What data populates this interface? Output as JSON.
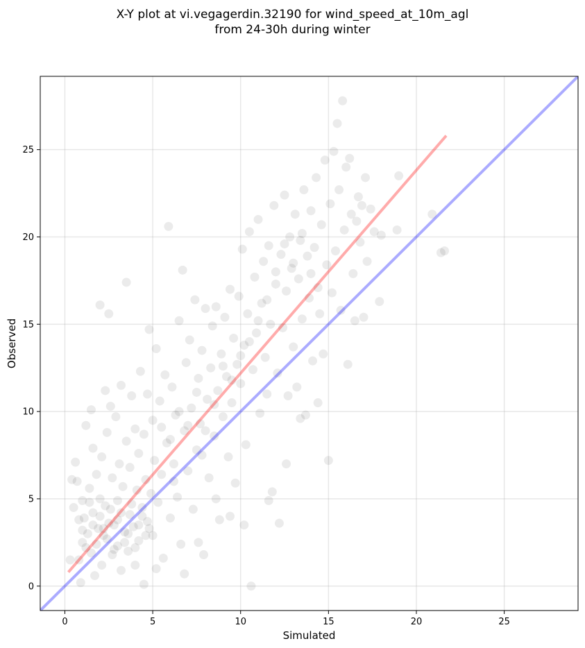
{
  "chart_data": {
    "type": "scatter",
    "title_line1": "X-Y plot at vi.vegagerdin.32190 for wind_speed_at_10m_agl",
    "title_line2": "from 24-30h during winter",
    "xlabel": "Simulated",
    "ylabel": "Observed",
    "xlim": [
      -1.4,
      29.2
    ],
    "ylim": [
      -1.4,
      29.2
    ],
    "x_ticks": [
      0,
      5,
      10,
      15,
      20,
      25
    ],
    "y_ticks": [
      0,
      5,
      10,
      15,
      20,
      25
    ],
    "grid": true,
    "point_color": "#000000",
    "point_alpha": 0.08,
    "identity_line": {
      "color": "#0000ff",
      "points": [
        [
          -1.4,
          -1.4
        ],
        [
          29.2,
          29.2
        ]
      ]
    },
    "fit_line": {
      "color": "#ff0000",
      "points": [
        [
          0.2,
          0.8
        ],
        [
          21.7,
          25.8
        ]
      ]
    },
    "series": [
      {
        "values": [
          [
            0.3,
            1.5
          ],
          [
            0.4,
            6.1
          ],
          [
            0.5,
            4.5
          ],
          [
            0.6,
            7.1
          ],
          [
            0.7,
            6.0
          ],
          [
            0.8,
            1.5
          ],
          [
            0.8,
            3.8
          ],
          [
            0.9,
            0.2
          ],
          [
            1.0,
            4.9
          ],
          [
            1.0,
            2.5
          ],
          [
            1.1,
            3.9
          ],
          [
            1.2,
            9.2
          ],
          [
            1.3,
            3.0
          ],
          [
            1.4,
            5.6
          ],
          [
            1.5,
            10.1
          ],
          [
            1.5,
            1.9
          ],
          [
            1.6,
            7.9
          ],
          [
            1.6,
            4.2
          ],
          [
            1.7,
            0.6
          ],
          [
            1.8,
            6.4
          ],
          [
            1.9,
            3.3
          ],
          [
            2.0,
            16.1
          ],
          [
            2.0,
            5.0
          ],
          [
            2.1,
            1.2
          ],
          [
            2.1,
            7.4
          ],
          [
            2.2,
            2.9
          ],
          [
            2.3,
            11.2
          ],
          [
            2.3,
            4.6
          ],
          [
            2.4,
            8.8
          ],
          [
            2.5,
            15.6
          ],
          [
            2.5,
            3.6
          ],
          [
            2.6,
            10.3
          ],
          [
            2.7,
            6.2
          ],
          [
            2.7,
            1.8
          ],
          [
            2.8,
            3.5
          ],
          [
            2.9,
            9.7
          ],
          [
            3.0,
            4.9
          ],
          [
            3.0,
            2.3
          ],
          [
            3.1,
            7.0
          ],
          [
            3.2,
            0.9
          ],
          [
            3.2,
            11.5
          ],
          [
            3.3,
            5.7
          ],
          [
            3.4,
            3.1
          ],
          [
            3.5,
            17.4
          ],
          [
            3.5,
            8.3
          ],
          [
            3.6,
            2.0
          ],
          [
            3.7,
            6.8
          ],
          [
            3.7,
            4.1
          ],
          [
            3.8,
            10.9
          ],
          [
            3.9,
            3.4
          ],
          [
            4.0,
            9.0
          ],
          [
            4.0,
            1.2
          ],
          [
            4.1,
            5.5
          ],
          [
            4.2,
            7.6
          ],
          [
            4.2,
            2.6
          ],
          [
            4.3,
            12.3
          ],
          [
            4.4,
            4.5
          ],
          [
            4.5,
            8.7
          ],
          [
            4.5,
            0.1
          ],
          [
            4.6,
            6.1
          ],
          [
            4.7,
            3.7
          ],
          [
            4.7,
            11.0
          ],
          [
            4.8,
            14.7
          ],
          [
            4.9,
            5.3
          ],
          [
            5.0,
            9.5
          ],
          [
            5.0,
            2.9
          ],
          [
            5.1,
            7.2
          ],
          [
            5.2,
            13.6
          ],
          [
            5.3,
            4.8
          ],
          [
            5.4,
            10.6
          ],
          [
            5.5,
            6.4
          ],
          [
            5.6,
            1.6
          ],
          [
            5.7,
            12.1
          ],
          [
            5.8,
            8.2
          ],
          [
            5.9,
            20.6
          ],
          [
            6.0,
            3.9
          ],
          [
            6.1,
            11.4
          ],
          [
            6.2,
            7.0
          ],
          [
            6.3,
            9.8
          ],
          [
            6.4,
            5.1
          ],
          [
            6.5,
            15.2
          ],
          [
            6.6,
            2.4
          ],
          [
            6.7,
            18.1
          ],
          [
            6.8,
            8.9
          ],
          [
            6.9,
            12.8
          ],
          [
            7.0,
            6.6
          ],
          [
            7.1,
            14.1
          ],
          [
            7.2,
            10.2
          ],
          [
            7.3,
            4.4
          ],
          [
            7.4,
            16.4
          ],
          [
            7.5,
            7.8
          ],
          [
            7.6,
            11.9
          ],
          [
            7.7,
            9.3
          ],
          [
            7.8,
            13.5
          ],
          [
            7.9,
            1.8
          ],
          [
            8.0,
            15.9
          ],
          [
            8.1,
            10.7
          ],
          [
            8.2,
            6.2
          ],
          [
            8.3,
            12.5
          ],
          [
            8.4,
            14.9
          ],
          [
            8.5,
            8.6
          ],
          [
            8.6,
            16.0
          ],
          [
            8.7,
            11.2
          ],
          [
            8.8,
            3.8
          ],
          [
            8.9,
            13.3
          ],
          [
            9.0,
            9.7
          ],
          [
            9.1,
            15.4
          ],
          [
            9.2,
            12.0
          ],
          [
            9.3,
            7.4
          ],
          [
            9.4,
            17.0
          ],
          [
            9.5,
            10.5
          ],
          [
            9.6,
            14.2
          ],
          [
            9.7,
            5.9
          ],
          [
            9.8,
            12.7
          ],
          [
            9.9,
            16.6
          ],
          [
            10.0,
            11.6
          ],
          [
            10.1,
            19.3
          ],
          [
            10.2,
            13.8
          ],
          [
            10.3,
            8.1
          ],
          [
            10.4,
            15.6
          ],
          [
            10.5,
            20.3
          ],
          [
            10.6,
            0.0
          ],
          [
            10.7,
            12.4
          ],
          [
            10.8,
            17.7
          ],
          [
            10.9,
            14.5
          ],
          [
            11.0,
            21.0
          ],
          [
            11.1,
            9.9
          ],
          [
            11.2,
            16.2
          ],
          [
            11.3,
            18.6
          ],
          [
            11.4,
            13.1
          ],
          [
            11.5,
            11.0
          ],
          [
            11.6,
            19.5
          ],
          [
            11.7,
            15.0
          ],
          [
            11.8,
            5.4
          ],
          [
            11.9,
            21.8
          ],
          [
            12.0,
            17.3
          ],
          [
            12.1,
            12.2
          ],
          [
            12.2,
            3.6
          ],
          [
            12.3,
            19.0
          ],
          [
            12.4,
            14.8
          ],
          [
            12.5,
            22.4
          ],
          [
            12.6,
            16.9
          ],
          [
            12.7,
            10.9
          ],
          [
            12.8,
            20.0
          ],
          [
            12.9,
            18.2
          ],
          [
            13.0,
            13.7
          ],
          [
            13.1,
            21.3
          ],
          [
            13.2,
            11.4
          ],
          [
            13.3,
            17.6
          ],
          [
            13.4,
            19.8
          ],
          [
            13.5,
            15.3
          ],
          [
            13.6,
            22.7
          ],
          [
            13.7,
            9.8
          ],
          [
            13.8,
            18.9
          ],
          [
            13.9,
            16.5
          ],
          [
            14.0,
            21.5
          ],
          [
            14.1,
            12.9
          ],
          [
            14.2,
            19.4
          ],
          [
            14.3,
            23.4
          ],
          [
            14.4,
            17.1
          ],
          [
            14.5,
            15.6
          ],
          [
            14.6,
            20.7
          ],
          [
            14.7,
            13.3
          ],
          [
            14.8,
            24.4
          ],
          [
            14.9,
            18.4
          ],
          [
            15.0,
            7.2
          ],
          [
            15.1,
            21.9
          ],
          [
            15.2,
            16.8
          ],
          [
            15.3,
            24.9
          ],
          [
            15.4,
            19.2
          ],
          [
            15.5,
            26.5
          ],
          [
            15.6,
            22.7
          ],
          [
            15.7,
            15.8
          ],
          [
            15.8,
            27.8
          ],
          [
            15.9,
            20.4
          ],
          [
            16.0,
            24.0
          ],
          [
            16.1,
            12.7
          ],
          [
            16.2,
            24.5
          ],
          [
            16.3,
            21.3
          ],
          [
            16.4,
            17.9
          ],
          [
            16.5,
            15.2
          ],
          [
            16.6,
            20.9
          ],
          [
            16.7,
            22.3
          ],
          [
            16.8,
            19.7
          ],
          [
            16.9,
            21.8
          ],
          [
            17.0,
            15.4
          ],
          [
            17.1,
            23.4
          ],
          [
            17.2,
            18.6
          ],
          [
            17.4,
            21.6
          ],
          [
            17.6,
            20.3
          ],
          [
            17.9,
            16.3
          ],
          [
            18.0,
            20.1
          ],
          [
            18.9,
            20.4
          ],
          [
            19.0,
            23.5
          ],
          [
            20.9,
            21.3
          ],
          [
            21.4,
            19.1
          ],
          [
            21.6,
            19.2
          ],
          [
            1.0,
            3.2
          ],
          [
            1.2,
            2.2
          ],
          [
            1.4,
            4.8
          ],
          [
            1.6,
            3.5
          ],
          [
            1.8,
            2.4
          ],
          [
            2.0,
            4.0
          ],
          [
            2.2,
            3.3
          ],
          [
            2.4,
            2.7
          ],
          [
            2.6,
            4.4
          ],
          [
            2.8,
            2.1
          ],
          [
            3.0,
            3.8
          ],
          [
            3.2,
            4.2
          ],
          [
            3.4,
            2.5
          ],
          [
            3.6,
            3.0
          ],
          [
            3.8,
            4.7
          ],
          [
            4.0,
            2.2
          ],
          [
            4.2,
            3.5
          ],
          [
            4.4,
            4.0
          ],
          [
            4.6,
            2.9
          ],
          [
            4.8,
            3.3
          ],
          [
            5.5,
            9.1
          ],
          [
            6.0,
            8.4
          ],
          [
            6.5,
            10.0
          ],
          [
            7.0,
            9.2
          ],
          [
            7.5,
            11.1
          ],
          [
            8.0,
            8.9
          ],
          [
            8.5,
            10.4
          ],
          [
            9.0,
            12.6
          ],
          [
            9.5,
            11.8
          ],
          [
            10.0,
            13.2
          ],
          [
            10.5,
            14.0
          ],
          [
            11.0,
            15.2
          ],
          [
            11.5,
            16.4
          ],
          [
            12.0,
            18.0
          ],
          [
            12.5,
            19.6
          ],
          [
            13.0,
            18.5
          ],
          [
            13.5,
            20.2
          ],
          [
            14.0,
            17.9
          ],
          [
            6.2,
            6.0
          ],
          [
            7.8,
            7.5
          ],
          [
            8.6,
            5.0
          ],
          [
            9.4,
            4.0
          ],
          [
            10.2,
            3.5
          ],
          [
            11.6,
            4.9
          ],
          [
            12.6,
            7.0
          ],
          [
            13.4,
            9.6
          ],
          [
            14.4,
            10.5
          ],
          [
            5.2,
            1.0
          ],
          [
            6.8,
            0.7
          ],
          [
            7.6,
            2.5
          ]
        ]
      }
    ]
  }
}
